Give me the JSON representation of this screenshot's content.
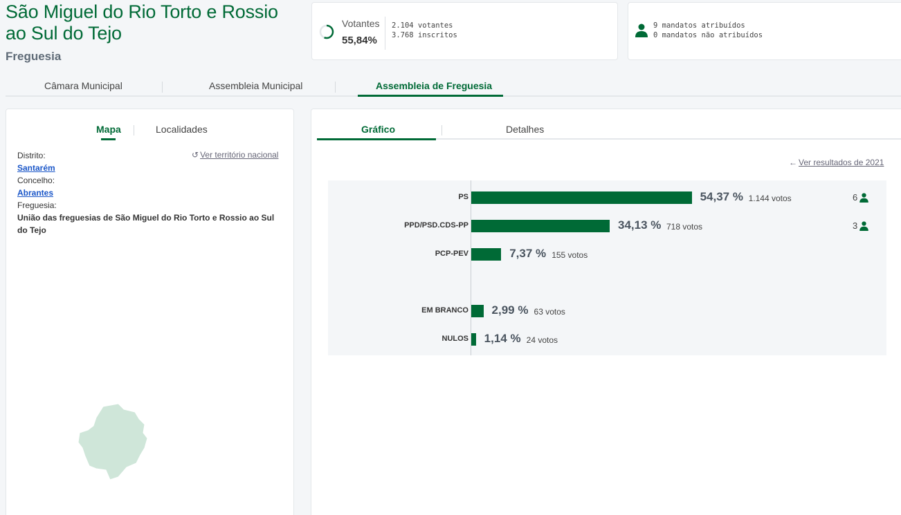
{
  "header": {
    "title": "São Miguel do Rio Torto e Rossio ao Sul do Tejo",
    "subtitle": "Freguesia"
  },
  "votantes": {
    "label": "Votantes",
    "pct": "55,84%",
    "pct_value": 55.84,
    "votantes_line": "2.104 votantes",
    "inscritos_line": "3.768 inscritos"
  },
  "mandatos": {
    "atribuidos": "9 mandatos atribuídos",
    "nao_atribuidos": "0 mandatos não atribuídos"
  },
  "tabs": [
    "Câmara Municipal",
    "Assembleia Municipal",
    "Assembleia de Freguesia"
  ],
  "active_tab": "Assembleia de Freguesia",
  "left_panel": {
    "tabs": [
      "Mapa",
      "Localidades"
    ],
    "ver_territorio": "Ver território nacional",
    "distrito_label": "Distrito:",
    "distrito_value": "Santarém",
    "concelho_label": "Concelho:",
    "concelho_value": "Abrantes",
    "freguesia_label": "Freguesia:",
    "freguesia_value": "União das freguesias de São Miguel do Rio Torto e Rossio ao Sul do Tejo"
  },
  "right_panel": {
    "tabs": [
      "Gráfico",
      "Detalhes"
    ],
    "ver_resultados": "Ver resultados de 2021"
  },
  "chart_data": {
    "type": "bar",
    "orientation": "horizontal",
    "categories": [
      "PS",
      "PPD/PSD.CDS-PP",
      "PCP-PEV",
      "EM BRANCO",
      "NULOS"
    ],
    "values": [
      54.37,
      34.13,
      7.37,
      2.99,
      1.14
    ],
    "pct_labels": [
      "54,37 %",
      "34,13 %",
      "7,37 %",
      "2,99 %",
      "1,14 %"
    ],
    "votos_labels": [
      "1.144 votos",
      "718 votos",
      "155 votos",
      "63 votos",
      "24 votos"
    ],
    "seats": [
      "6",
      "3",
      "",
      "",
      ""
    ],
    "bar_color": "#006a36",
    "xlim": [
      0,
      100
    ]
  },
  "colors": {
    "accent": "#006a36",
    "map_fill": "#cfe6d9",
    "link": "#1a56c8"
  }
}
